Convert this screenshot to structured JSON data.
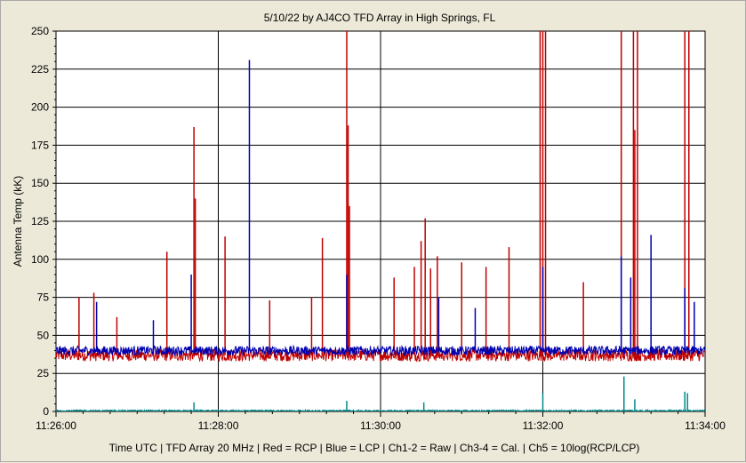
{
  "chart_data": {
    "type": "line",
    "title": "5/10/22  by  AJ4CO TFD Array  in  High Springs, FL",
    "xlabel": "Time UTC | TFD Array 20 MHz | Red = RCP | Blue = LCP | Ch1-2 = Raw | Ch3-4 = Cal. | Ch5 = 10log(RCP/LCP)",
    "ylabel": "Antenna Temp (kK)",
    "xlim": [
      "11:26:00",
      "11:34:00"
    ],
    "ylim": [
      0,
      250
    ],
    "x_ticks": [
      "11:26:00",
      "11:28:00",
      "11:30:00",
      "11:32:00",
      "11:34:00"
    ],
    "y_ticks": [
      "0",
      "25",
      "50",
      "75",
      "100",
      "125",
      "150",
      "175",
      "200",
      "225",
      "250"
    ],
    "grid": true,
    "series": [
      {
        "name": "RCP",
        "color": "#c00000",
        "baseline": 37,
        "noise": 4,
        "spikes": [
          {
            "t": "11:26:17",
            "v": 75
          },
          {
            "t": "11:26:28",
            "v": 78
          },
          {
            "t": "11:26:45",
            "v": 62
          },
          {
            "t": "11:27:22",
            "v": 105
          },
          {
            "t": "11:27:42",
            "v": 187
          },
          {
            "t": "11:27:43",
            "v": 140
          },
          {
            "t": "11:28:05",
            "v": 115
          },
          {
            "t": "11:28:38",
            "v": 73
          },
          {
            "t": "11:29:09",
            "v": 75
          },
          {
            "t": "11:29:17",
            "v": 114
          },
          {
            "t": "11:29:35",
            "v": 250
          },
          {
            "t": "11:29:36",
            "v": 188
          },
          {
            "t": "11:29:37",
            "v": 135
          },
          {
            "t": "11:30:10",
            "v": 88
          },
          {
            "t": "11:30:25",
            "v": 95
          },
          {
            "t": "11:30:30",
            "v": 112
          },
          {
            "t": "11:30:33",
            "v": 127
          },
          {
            "t": "11:30:37",
            "v": 94
          },
          {
            "t": "11:30:42",
            "v": 102
          },
          {
            "t": "11:31:00",
            "v": 98
          },
          {
            "t": "11:31:18",
            "v": 95
          },
          {
            "t": "11:31:35",
            "v": 108
          },
          {
            "t": "11:31:58",
            "v": 250
          },
          {
            "t": "11:32:00",
            "v": 250
          },
          {
            "t": "11:32:02",
            "v": 250
          },
          {
            "t": "11:32:30",
            "v": 85
          },
          {
            "t": "11:32:58",
            "v": 250
          },
          {
            "t": "11:33:07",
            "v": 250
          },
          {
            "t": "11:33:08",
            "v": 185
          },
          {
            "t": "11:33:10",
            "v": 250
          },
          {
            "t": "11:33:45",
            "v": 250
          },
          {
            "t": "11:33:48",
            "v": 250
          }
        ]
      },
      {
        "name": "LCP",
        "color": "#0000b0",
        "baseline": 40,
        "noise": 3,
        "spikes": [
          {
            "t": "11:26:30",
            "v": 72
          },
          {
            "t": "11:27:12",
            "v": 60
          },
          {
            "t": "11:27:40",
            "v": 90
          },
          {
            "t": "11:28:23",
            "v": 231
          },
          {
            "t": "11:29:35",
            "v": 90
          },
          {
            "t": "11:30:43",
            "v": 75
          },
          {
            "t": "11:31:10",
            "v": 68
          },
          {
            "t": "11:32:00",
            "v": 95
          },
          {
            "t": "11:32:58",
            "v": 102
          },
          {
            "t": "11:33:05",
            "v": 88
          },
          {
            "t": "11:33:20",
            "v": 116
          },
          {
            "t": "11:33:45",
            "v": 81
          },
          {
            "t": "11:33:52",
            "v": 72
          }
        ]
      },
      {
        "name": "Ch5 10log(RCP/LCP)",
        "color": "#008b8b",
        "baseline": 0,
        "noise": 1,
        "spikes": [
          {
            "t": "11:27:42",
            "v": 6
          },
          {
            "t": "11:29:35",
            "v": 7
          },
          {
            "t": "11:30:32",
            "v": 6
          },
          {
            "t": "11:32:00",
            "v": 12
          },
          {
            "t": "11:33:00",
            "v": 23
          },
          {
            "t": "11:33:08",
            "v": 8
          },
          {
            "t": "11:33:45",
            "v": 13
          },
          {
            "t": "11:33:47",
            "v": 12
          }
        ]
      }
    ]
  }
}
